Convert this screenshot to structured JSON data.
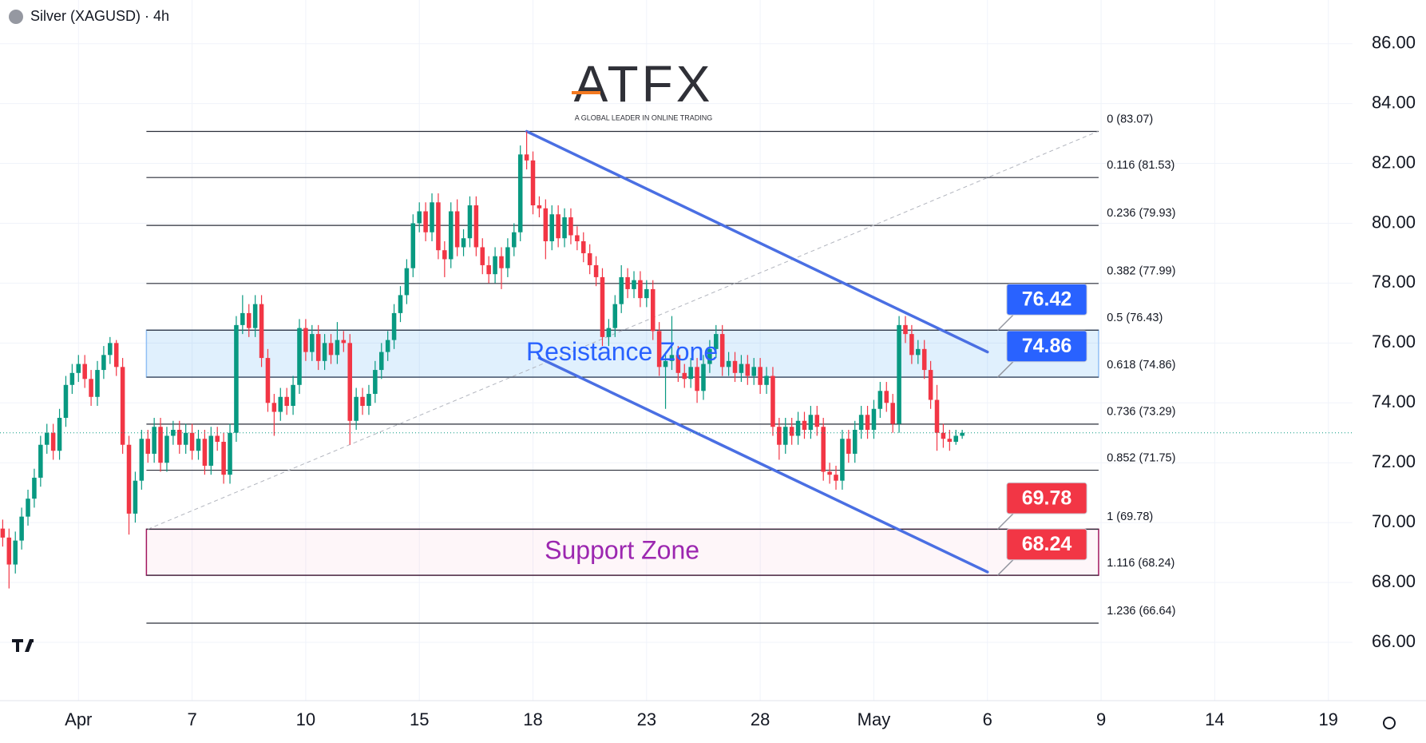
{
  "chart_data": {
    "type": "candlestick",
    "title": "Silver (XAGUSD) · 4h",
    "logo": {
      "name": "ATFX",
      "tagline": "A GLOBAL LEADER IN ONLINE TRADING"
    },
    "up_color": "#089981",
    "down_color": "#f23645",
    "xlim": [
      -0.43,
      213.8
    ],
    "xticks": [
      {
        "value": 12,
        "label": "Apr"
      },
      {
        "value": 30,
        "label": "7"
      },
      {
        "value": 48,
        "label": "10"
      },
      {
        "value": 66,
        "label": "15"
      },
      {
        "value": 84,
        "label": "18"
      },
      {
        "value": 102,
        "label": "23"
      },
      {
        "value": 120,
        "label": "28"
      },
      {
        "value": 138,
        "label": "May"
      },
      {
        "value": 156,
        "label": "6"
      },
      {
        "value": 174,
        "label": "9"
      },
      {
        "value": 192,
        "label": "14"
      },
      {
        "value": 210,
        "label": "19"
      }
    ],
    "ylim": [
      64.05,
      87.46
    ],
    "yticks": [
      {
        "value": 66,
        "label": "66.00"
      },
      {
        "value": 68,
        "label": "68.00"
      },
      {
        "value": 70,
        "label": "70.00"
      },
      {
        "value": 72,
        "label": "72.00"
      },
      {
        "value": 74,
        "label": "74.00"
      },
      {
        "value": 76,
        "label": "76.00"
      },
      {
        "value": 78,
        "label": "78.00"
      },
      {
        "value": 80,
        "label": "80.00"
      },
      {
        "value": 82,
        "label": "82.00"
      },
      {
        "value": 84,
        "label": "84.00"
      },
      {
        "value": 86,
        "label": "86.00"
      }
    ],
    "grid": true,
    "ohlc": [
      [
        69.8,
        70.1,
        69.2,
        69.5
      ],
      [
        69.5,
        69.8,
        67.8,
        68.6
      ],
      [
        68.6,
        69.7,
        68.3,
        69.4
      ],
      [
        69.4,
        70.5,
        69.1,
        70.2
      ],
      [
        70.2,
        71.1,
        69.9,
        70.8
      ],
      [
        70.8,
        71.8,
        70.5,
        71.5
      ],
      [
        71.5,
        72.9,
        71.2,
        72.6
      ],
      [
        72.6,
        73.3,
        72.3,
        73.0
      ],
      [
        73.0,
        73.3,
        72.1,
        72.4
      ],
      [
        72.4,
        73.8,
        72.1,
        73.5
      ],
      [
        73.5,
        74.9,
        73.2,
        74.6
      ],
      [
        74.6,
        75.3,
        74.3,
        75.0
      ],
      [
        75.0,
        75.6,
        74.7,
        75.3
      ],
      [
        75.3,
        75.6,
        74.5,
        74.8
      ],
      [
        74.8,
        75.1,
        73.9,
        74.2
      ],
      [
        74.2,
        75.4,
        73.9,
        75.1
      ],
      [
        75.1,
        75.9,
        74.8,
        75.6
      ],
      [
        75.6,
        76.2,
        75.3,
        76.0
      ],
      [
        76.0,
        76.1,
        74.9,
        75.2
      ],
      [
        75.2,
        75.5,
        72.3,
        72.6
      ],
      [
        72.6,
        72.9,
        69.6,
        70.3
      ],
      [
        70.3,
        71.7,
        70.0,
        71.4
      ],
      [
        71.4,
        73.1,
        71.1,
        72.8
      ],
      [
        72.8,
        73.1,
        72.0,
        72.3
      ],
      [
        72.3,
        73.5,
        72.0,
        73.2
      ],
      [
        73.2,
        73.5,
        71.7,
        72.0
      ],
      [
        72.0,
        73.2,
        71.7,
        72.9
      ],
      [
        72.9,
        73.4,
        72.6,
        73.1
      ],
      [
        73.1,
        73.4,
        72.3,
        72.6
      ],
      [
        72.6,
        73.3,
        72.3,
        73.0
      ],
      [
        73.0,
        73.3,
        72.1,
        72.4
      ],
      [
        72.4,
        73.1,
        72.1,
        72.8
      ],
      [
        72.8,
        73.1,
        71.6,
        71.9
      ],
      [
        71.9,
        73.2,
        71.6,
        72.9
      ],
      [
        72.9,
        73.2,
        72.4,
        72.7
      ],
      [
        72.7,
        73.0,
        71.3,
        71.6
      ],
      [
        71.6,
        73.3,
        71.3,
        73.0
      ],
      [
        73.0,
        76.9,
        72.7,
        76.6
      ],
      [
        76.6,
        77.6,
        76.3,
        77.0
      ],
      [
        77.0,
        77.3,
        76.2,
        76.5
      ],
      [
        76.5,
        77.6,
        76.2,
        77.3
      ],
      [
        77.3,
        77.6,
        75.2,
        75.5
      ],
      [
        75.5,
        75.8,
        73.7,
        74.0
      ],
      [
        74.0,
        74.3,
        72.9,
        73.7
      ],
      [
        73.7,
        74.5,
        73.4,
        74.2
      ],
      [
        74.2,
        74.5,
        73.6,
        73.9
      ],
      [
        73.9,
        74.9,
        73.6,
        74.6
      ],
      [
        74.6,
        76.8,
        74.3,
        76.5
      ],
      [
        76.5,
        76.8,
        75.4,
        75.7
      ],
      [
        75.7,
        76.6,
        75.4,
        76.3
      ],
      [
        76.3,
        76.6,
        75.1,
        75.4
      ],
      [
        75.4,
        76.3,
        75.1,
        76.0
      ],
      [
        76.0,
        76.3,
        75.3,
        75.6
      ],
      [
        75.6,
        76.7,
        75.3,
        76.1
      ],
      [
        76.1,
        76.4,
        75.7,
        76.0
      ],
      [
        76.0,
        76.3,
        72.6,
        73.4
      ],
      [
        73.4,
        74.5,
        73.1,
        74.2
      ],
      [
        74.2,
        74.5,
        73.6,
        73.9
      ],
      [
        73.9,
        74.6,
        73.6,
        74.3
      ],
      [
        74.3,
        75.4,
        74.0,
        75.1
      ],
      [
        75.1,
        76.0,
        74.8,
        75.7
      ],
      [
        75.7,
        76.4,
        75.4,
        76.1
      ],
      [
        76.1,
        77.3,
        75.8,
        77.0
      ],
      [
        77.0,
        77.9,
        76.7,
        77.6
      ],
      [
        77.6,
        78.8,
        77.3,
        78.5
      ],
      [
        78.5,
        80.3,
        78.2,
        80.0
      ],
      [
        80.0,
        80.7,
        79.7,
        80.4
      ],
      [
        80.4,
        80.7,
        79.4,
        79.7
      ],
      [
        79.7,
        81.0,
        79.4,
        80.7
      ],
      [
        80.7,
        81.0,
        78.8,
        79.1
      ],
      [
        79.1,
        79.4,
        78.2,
        78.8
      ],
      [
        78.8,
        80.7,
        78.5,
        80.4
      ],
      [
        80.4,
        80.8,
        78.9,
        79.2
      ],
      [
        79.2,
        79.8,
        78.9,
        79.5
      ],
      [
        79.5,
        80.9,
        79.2,
        80.6
      ],
      [
        80.6,
        80.9,
        78.9,
        79.2
      ],
      [
        79.2,
        79.5,
        78.3,
        78.6
      ],
      [
        78.6,
        78.9,
        78.0,
        78.3
      ],
      [
        78.3,
        79.2,
        78.0,
        78.9
      ],
      [
        78.9,
        79.2,
        77.8,
        78.5
      ],
      [
        78.5,
        79.5,
        78.2,
        79.2
      ],
      [
        79.2,
        80.0,
        78.9,
        79.7
      ],
      [
        79.7,
        82.6,
        79.4,
        82.3
      ],
      [
        82.3,
        83.07,
        81.8,
        82.1
      ],
      [
        82.1,
        82.4,
        80.3,
        80.6
      ],
      [
        80.6,
        80.9,
        80.2,
        80.5
      ],
      [
        80.5,
        80.8,
        78.8,
        79.4
      ],
      [
        79.4,
        80.6,
        79.1,
        80.3
      ],
      [
        80.3,
        80.6,
        79.2,
        79.5
      ],
      [
        79.5,
        80.5,
        79.2,
        80.2
      ],
      [
        80.2,
        80.5,
        79.3,
        79.6
      ],
      [
        79.6,
        79.9,
        79.1,
        79.4
      ],
      [
        79.4,
        79.7,
        78.7,
        79.0
      ],
      [
        79.0,
        79.3,
        78.3,
        78.6
      ],
      [
        78.6,
        78.9,
        77.9,
        78.2
      ],
      [
        78.2,
        78.5,
        75.9,
        76.2
      ],
      [
        76.2,
        76.8,
        75.9,
        76.5
      ],
      [
        76.5,
        77.6,
        76.2,
        77.3
      ],
      [
        77.3,
        78.6,
        77.0,
        78.2
      ],
      [
        78.2,
        78.5,
        77.5,
        77.8
      ],
      [
        77.8,
        78.4,
        77.5,
        78.1
      ],
      [
        78.1,
        78.4,
        77.2,
        77.5
      ],
      [
        77.5,
        78.1,
        77.2,
        77.8
      ],
      [
        77.8,
        78.1,
        76.1,
        76.4
      ],
      [
        76.4,
        76.7,
        74.9,
        75.2
      ],
      [
        75.2,
        75.7,
        73.8,
        75.4
      ],
      [
        75.4,
        76.9,
        75.1,
        75.6
      ],
      [
        75.6,
        75.9,
        74.7,
        75.0
      ],
      [
        75.0,
        75.3,
        74.5,
        74.8
      ],
      [
        74.8,
        75.5,
        74.5,
        75.2
      ],
      [
        75.2,
        75.5,
        74.0,
        74.4
      ],
      [
        74.4,
        75.6,
        74.1,
        75.3
      ],
      [
        75.3,
        76.1,
        75.0,
        75.8
      ],
      [
        75.8,
        76.6,
        75.5,
        76.3
      ],
      [
        76.3,
        76.6,
        74.9,
        75.2
      ],
      [
        75.2,
        75.7,
        74.9,
        75.4
      ],
      [
        75.4,
        75.7,
        74.7,
        75.0
      ],
      [
        75.0,
        75.6,
        74.7,
        75.3
      ],
      [
        75.3,
        75.6,
        74.6,
        74.9
      ],
      [
        74.9,
        75.5,
        74.6,
        75.2
      ],
      [
        75.2,
        75.5,
        74.3,
        74.6
      ],
      [
        74.6,
        75.2,
        74.3,
        74.9
      ],
      [
        74.9,
        75.2,
        72.9,
        73.2
      ],
      [
        73.2,
        73.5,
        72.1,
        72.6
      ],
      [
        72.6,
        73.5,
        72.3,
        73.2
      ],
      [
        73.2,
        73.5,
        72.6,
        72.9
      ],
      [
        72.9,
        73.7,
        72.6,
        73.4
      ],
      [
        73.4,
        73.7,
        72.8,
        73.1
      ],
      [
        73.1,
        73.9,
        72.8,
        73.6
      ],
      [
        73.6,
        73.9,
        72.9,
        73.2
      ],
      [
        73.2,
        73.5,
        71.4,
        71.7
      ],
      [
        71.7,
        72.0,
        71.3,
        71.6
      ],
      [
        71.6,
        71.9,
        71.1,
        71.4
      ],
      [
        71.4,
        73.1,
        71.1,
        72.8
      ],
      [
        72.8,
        73.1,
        72.0,
        72.3
      ],
      [
        72.3,
        73.4,
        72.0,
        73.1
      ],
      [
        73.1,
        73.9,
        72.8,
        73.6
      ],
      [
        73.6,
        73.9,
        72.8,
        73.1
      ],
      [
        73.1,
        74.1,
        72.8,
        73.8
      ],
      [
        73.8,
        74.7,
        73.5,
        74.4
      ],
      [
        74.4,
        74.7,
        73.7,
        74.0
      ],
      [
        74.0,
        74.3,
        73.0,
        73.3
      ],
      [
        73.3,
        76.9,
        73.0,
        76.6
      ],
      [
        76.6,
        76.9,
        76.0,
        76.3
      ],
      [
        76.3,
        76.6,
        75.3,
        75.6
      ],
      [
        75.6,
        76.1,
        75.3,
        75.8
      ],
      [
        75.8,
        76.1,
        74.8,
        75.1
      ],
      [
        75.1,
        75.4,
        73.8,
        74.1
      ],
      [
        74.1,
        74.6,
        72.4,
        73.0
      ],
      [
        73.0,
        73.3,
        72.5,
        72.8
      ],
      [
        72.8,
        73.1,
        72.4,
        72.7
      ],
      [
        72.7,
        73.1,
        72.6,
        72.9
      ],
      [
        72.9,
        73.1,
        72.8,
        73.0
      ]
    ],
    "fib_levels": [
      {
        "value": 83.07,
        "label": "0 (83.07)"
      },
      {
        "value": 81.53,
        "label": "0.116 (81.53)"
      },
      {
        "value": 79.93,
        "label": "0.236 (79.93)"
      },
      {
        "value": 77.99,
        "label": "0.382 (77.99)"
      },
      {
        "value": 76.43,
        "label": "0.5 (76.43)"
      },
      {
        "value": 74.86,
        "label": "0.618 (74.86)"
      },
      {
        "value": 73.29,
        "label": "0.736 (73.29)"
      },
      {
        "value": 71.75,
        "label": "0.852 (71.75)"
      },
      {
        "value": 69.78,
        "label": "1 (69.78)"
      },
      {
        "value": 68.24,
        "label": "1.116 (68.24)"
      },
      {
        "value": 66.64,
        "label": "1.236 (66.64)"
      }
    ],
    "fib_color": "#2a2e39",
    "zones": [
      {
        "label": "Resistance Zone",
        "top": 76.43,
        "bottom": 74.86,
        "fill": "rgba(33,150,243,0.14)",
        "stroke": "#90bff5",
        "text_color": "#2962ff"
      },
      {
        "label": "Support Zone",
        "top": 69.78,
        "bottom": 68.24,
        "fill": "rgba(233,30,99,0.04)",
        "stroke": "#a3175f",
        "text_color": "#9c27b0"
      }
    ],
    "price_labels": [
      {
        "value": 76.42,
        "color": "#2962ff"
      },
      {
        "value": 74.86,
        "color": "#2962ff"
      },
      {
        "value": 69.78,
        "color": "#f23645"
      },
      {
        "value": 68.24,
        "color": "#f23645"
      }
    ],
    "channel": {
      "color": "#4a6fe3",
      "lines": [
        {
          "x": [
            83,
            156
          ],
          "y": [
            83.07,
            75.7
          ]
        },
        {
          "x": [
            85,
            156
          ],
          "y": [
            75.5,
            68.35
          ]
        }
      ]
    },
    "trend_line": {
      "x": [
        23,
        173.5
      ],
      "y": [
        69.78,
        83.07
      ]
    }
  }
}
